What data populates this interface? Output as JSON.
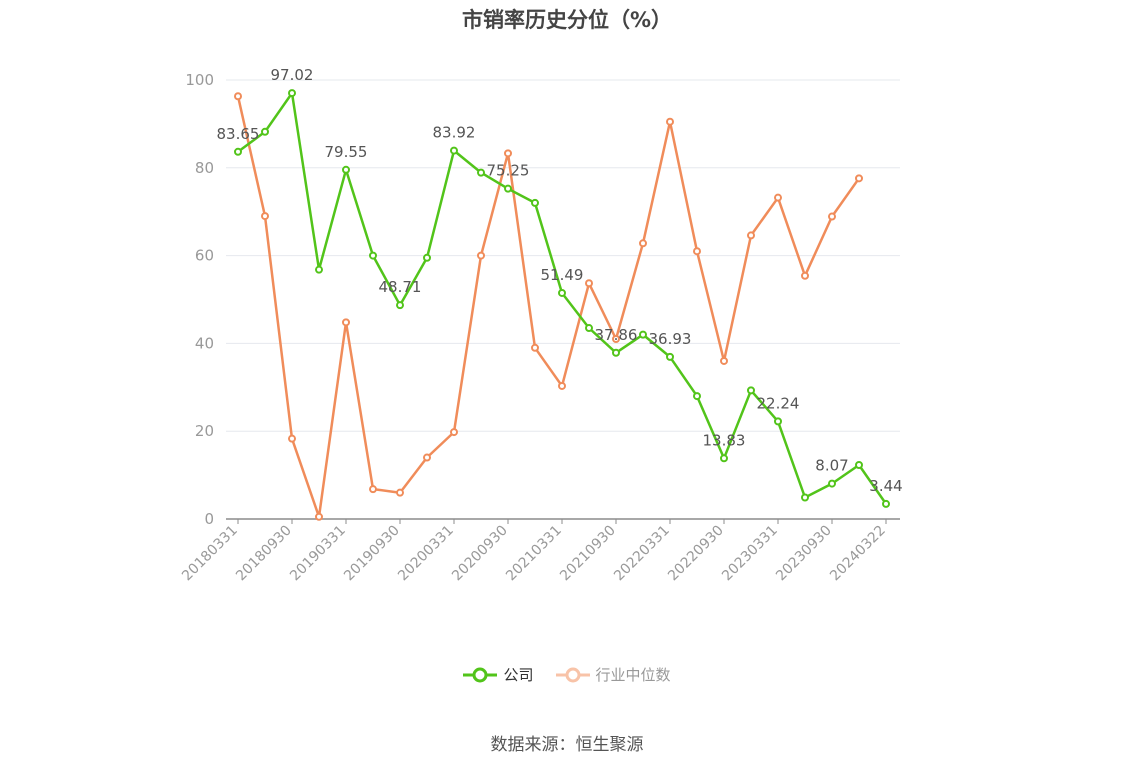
{
  "chart_data": {
    "type": "line",
    "title": "市销率历史分位（%）",
    "source": "数据来源：恒生聚源",
    "ylim": [
      0,
      100
    ],
    "yticks": [
      0,
      20,
      40,
      60,
      80,
      100
    ],
    "legend_position": "bottom",
    "grid": true,
    "x": [
      "20180331",
      "20180630",
      "20180930",
      "20181231",
      "20190331",
      "20190630",
      "20190930",
      "20191231",
      "20200331",
      "20200630",
      "20200930",
      "20201231",
      "20210331",
      "20210630",
      "20210930",
      "20211231",
      "20220331",
      "20220630",
      "20220930",
      "20221231",
      "20230331",
      "20230630",
      "20230930",
      "20231231",
      "20240322"
    ],
    "xtick_labels": [
      "20180331",
      "20180930",
      "20190331",
      "20190930",
      "20200331",
      "20200930",
      "20210331",
      "20210930",
      "20220331",
      "20220930",
      "20230331",
      "20230930",
      "20240322"
    ],
    "series": [
      {
        "name": "公司",
        "color": "#52c41a",
        "values": [
          83.65,
          88.2,
          97.02,
          56.8,
          79.55,
          60.0,
          48.71,
          59.5,
          83.92,
          78.9,
          75.25,
          72.0,
          51.49,
          43.5,
          37.86,
          42.0,
          36.93,
          28.0,
          13.83,
          29.3,
          22.24,
          4.9,
          8.07,
          12.3,
          3.44
        ],
        "labels": {
          "0": "83.65",
          "2": "97.02",
          "4": "79.55",
          "6": "48.71",
          "8": "83.92",
          "10": "75.25",
          "12": "51.49",
          "14": "37.86",
          "16": "36.93",
          "18": "13.83",
          "20": "22.24",
          "22": "8.07",
          "24": "3.44"
        }
      },
      {
        "name": "行业中位数",
        "color": "#f08c5a",
        "values": [
          96.3,
          69.0,
          18.3,
          0.5,
          44.8,
          6.8,
          6.0,
          14.0,
          19.8,
          60.0,
          83.3,
          39.0,
          30.3,
          53.7,
          41.0,
          62.8,
          90.5,
          61.0,
          36.0,
          64.6,
          73.2,
          55.4,
          68.9,
          77.6,
          null
        ]
      }
    ]
  }
}
